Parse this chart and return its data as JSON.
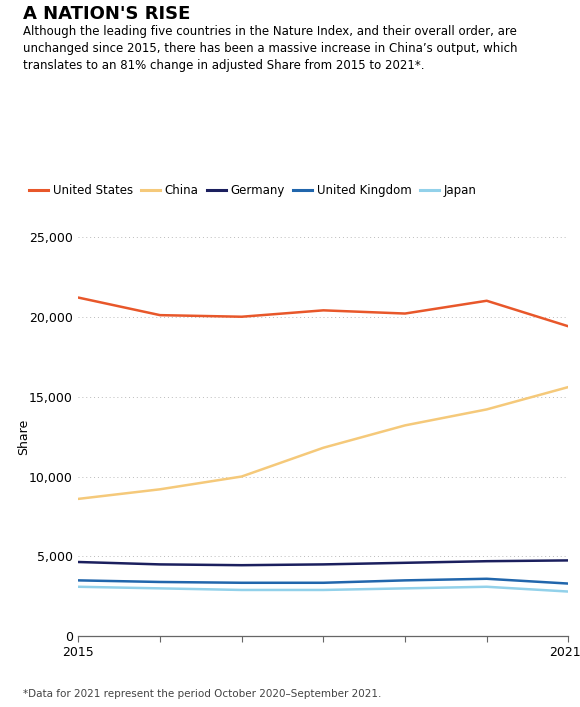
{
  "title": "A NATION'S RISE",
  "subtitle": "Although the leading five countries in the Nature Index, and their overall order, are\nunchanged since 2015, there has been a massive increase in China’s output, which\ntranslates to an 81% change in adjusted Share from 2015 to 2021*.",
  "footnote": "*Data for 2021 represent the period October 2020–September 2021.",
  "years": [
    2015,
    2016,
    2017,
    2018,
    2019,
    2020,
    2021
  ],
  "united_states": [
    21200,
    20100,
    20000,
    20400,
    20200,
    21000,
    19400
  ],
  "china": [
    8600,
    9200,
    10000,
    11800,
    13200,
    14200,
    15600
  ],
  "germany": [
    4650,
    4500,
    4450,
    4500,
    4600,
    4700,
    4750
  ],
  "united_kingdom": [
    3500,
    3400,
    3350,
    3350,
    3500,
    3600,
    3300
  ],
  "japan": [
    3100,
    3000,
    2900,
    2900,
    3000,
    3100,
    2800
  ],
  "colors": {
    "united_states": "#E8572A",
    "china": "#F5C97A",
    "germany": "#1B1F5E",
    "united_kingdom": "#2166AC",
    "japan": "#92D1EA"
  },
  "ylabel": "Share",
  "ylim": [
    0,
    25000
  ],
  "yticks": [
    0,
    5000,
    10000,
    15000,
    20000,
    25000
  ],
  "background_color": "#FFFFFF",
  "title_fontsize": 13,
  "subtitle_fontsize": 8.5,
  "legend_fontsize": 8.5,
  "tick_fontsize": 9,
  "footnote_fontsize": 7.5,
  "line_width": 1.8
}
